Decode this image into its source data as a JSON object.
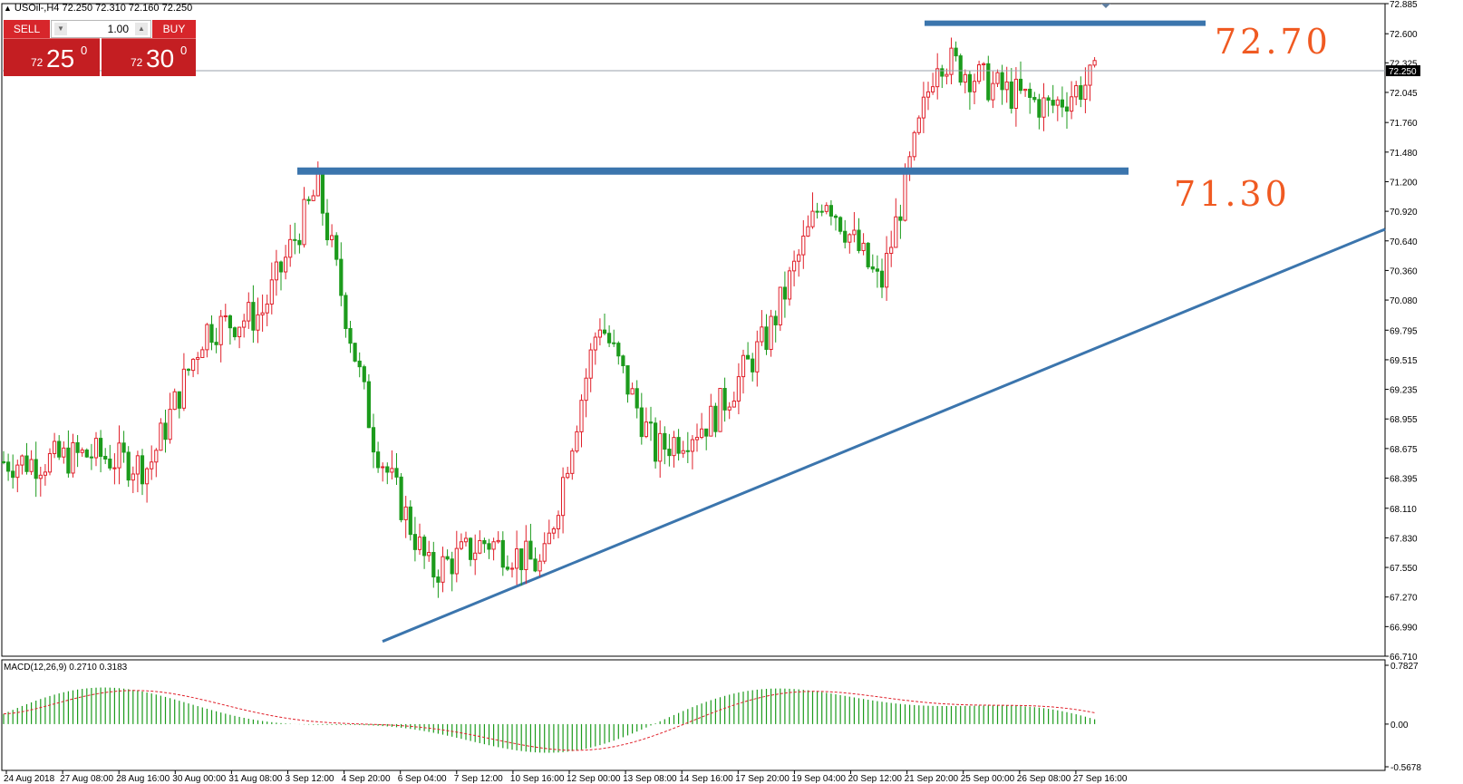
{
  "header": {
    "symbol_text": "USOil-,H4  72.250 72.310 72.160 72.250"
  },
  "trade_panel": {
    "sell_label": "SELL",
    "buy_label": "BUY",
    "lot_value": "1.00",
    "sell_price": {
      "prefix": "72",
      "main": "25",
      "sup": "0"
    },
    "buy_price": {
      "prefix": "72",
      "main": "30",
      "sup": "0"
    }
  },
  "annotations": {
    "resistance_label": "72.70",
    "support_label": "71.30"
  },
  "indicator": {
    "macd_label": "MACD(12,26,9) 0.2710 0.3183",
    "scale_labels": [
      "0.7827",
      "0.00",
      "-0.5678"
    ]
  },
  "price_axis": {
    "labels": [
      "72.885",
      "72.600",
      "72.325",
      "72.045",
      "71.760",
      "71.480",
      "71.200",
      "70.920",
      "70.640",
      "70.360",
      "70.080",
      "69.795",
      "69.515",
      "69.235",
      "68.955",
      "68.675",
      "68.395",
      "68.110",
      "67.830",
      "67.550",
      "67.270",
      "66.990",
      "66.710"
    ],
    "current_price": "72.250"
  },
  "time_axis": {
    "labels": [
      "24 Aug 2018",
      "27 Aug 08:00",
      "28 Aug 16:00",
      "30 Aug 00:00",
      "31 Aug 08:00",
      "3 Sep 12:00",
      "4 Sep 20:00",
      "6 Sep 04:00",
      "7 Sep 12:00",
      "10 Sep 16:00",
      "12 Sep 00:00",
      "13 Sep 08:00",
      "14 Sep 16:00",
      "17 Sep 20:00",
      "19 Sep 04:00",
      "20 Sep 12:00",
      "21 Sep 20:00",
      "25 Sep 00:00",
      "26 Sep 08:00",
      "27 Sep 16:00"
    ]
  },
  "colors": {
    "bull": "#e0202a",
    "bear": "#1c9b1c",
    "line": "#3b75ad",
    "label": "#f05a22",
    "signal": "#e0202a"
  },
  "chart_data": {
    "type": "candlestick",
    "symbol": "USOil-",
    "timeframe": "H4",
    "ylim": [
      66.71,
      72.885
    ],
    "current_price": 72.25,
    "horizontal_levels": [
      72.7,
      71.3
    ],
    "trendline": {
      "start": [
        "6 Sep 04:00",
        66.85
      ],
      "end": [
        "27 Sep 16:00",
        70.75
      ]
    },
    "close_points": [
      {
        "x": "24 Aug 2018",
        "y": 68.55
      },
      {
        "x": "27 Aug 08:00",
        "y": 68.62
      },
      {
        "x": "28 Aug 16:00",
        "y": 68.5
      },
      {
        "x": "30 Aug 00:00",
        "y": 69.8
      },
      {
        "x": "31 Aug 08:00",
        "y": 69.95
      },
      {
        "x": "3 Sep 12:00",
        "y": 71.15
      },
      {
        "x": "4 Sep 20:00",
        "y": 68.75
      },
      {
        "x": "6 Sep 04:00",
        "y": 67.5
      },
      {
        "x": "7 Sep 12:00",
        "y": 67.8
      },
      {
        "x": "10 Sep 16:00",
        "y": 67.55
      },
      {
        "x": "12 Sep 00:00",
        "y": 69.9
      },
      {
        "x": "13 Sep 08:00",
        "y": 68.65
      },
      {
        "x": "14 Sep 16:00",
        "y": 68.95
      },
      {
        "x": "17 Sep 20:00",
        "y": 69.75
      },
      {
        "x": "19 Sep 04:00",
        "y": 71.1
      },
      {
        "x": "20 Sep 12:00",
        "y": 70.2
      },
      {
        "x": "21 Sep 20:00",
        "y": 72.4
      },
      {
        "x": "25 Sep 00:00",
        "y": 72.1
      },
      {
        "x": "26 Sep 08:00",
        "y": 71.9
      },
      {
        "x": "27 Sep 16:00",
        "y": 72.25
      }
    ],
    "macd": {
      "main": 0.271,
      "signal": 0.3183,
      "ylim": [
        -0.5678,
        0.7827
      ]
    }
  }
}
